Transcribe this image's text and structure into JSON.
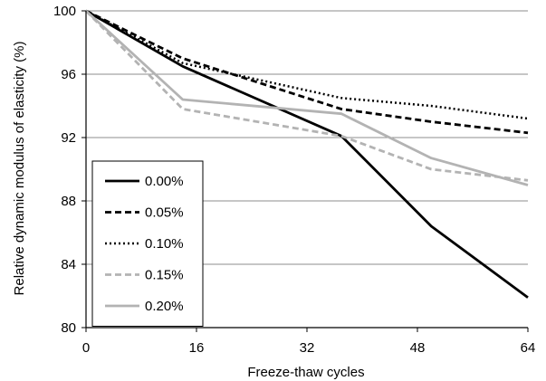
{
  "chart_data": {
    "type": "line",
    "xlabel": "Freeze-thaw cycles",
    "ylabel": "Relative dynamic modulus of elasticity (%)",
    "xlim": [
      0,
      64
    ],
    "ylim": [
      80,
      100
    ],
    "xticks": [
      0,
      16,
      32,
      48,
      64
    ],
    "yticks": [
      80,
      84,
      88,
      92,
      96,
      100
    ],
    "grid": "horizontal",
    "legend_position": "bottom-left",
    "series": [
      {
        "name": "0.00%",
        "color": "#000000",
        "style": "solid",
        "points": [
          [
            0,
            100
          ],
          [
            14,
            96.5
          ],
          [
            37,
            92.1
          ],
          [
            50,
            86.4
          ],
          [
            64,
            81.9
          ]
        ]
      },
      {
        "name": "0.05%",
        "color": "#000000",
        "style": "dashed",
        "points": [
          [
            0,
            100
          ],
          [
            14,
            97.0
          ],
          [
            37,
            93.8
          ],
          [
            50,
            93.0
          ],
          [
            64,
            92.3
          ]
        ]
      },
      {
        "name": "0.10%",
        "color": "#000000",
        "style": "dotted",
        "points": [
          [
            0,
            100
          ],
          [
            14,
            96.7
          ],
          [
            37,
            94.5
          ],
          [
            50,
            94.0
          ],
          [
            64,
            93.2
          ]
        ]
      },
      {
        "name": "0.15%",
        "color": "#b3b3b3",
        "style": "dashed",
        "points": [
          [
            0,
            100
          ],
          [
            14,
            93.8
          ],
          [
            37,
            92.1
          ],
          [
            50,
            90.0
          ],
          [
            64,
            89.3
          ]
        ]
      },
      {
        "name": "0.20%",
        "color": "#b3b3b3",
        "style": "solid",
        "points": [
          [
            0,
            100
          ],
          [
            14,
            94.4
          ],
          [
            37,
            93.5
          ],
          [
            50,
            90.7
          ],
          [
            64,
            89.0
          ]
        ]
      }
    ]
  }
}
